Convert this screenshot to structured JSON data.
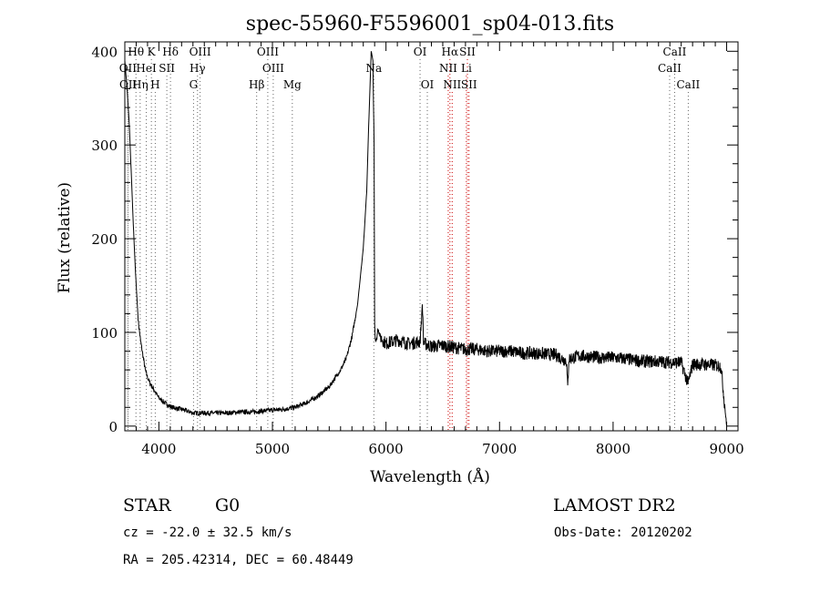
{
  "chart_data": {
    "type": "line",
    "title": "spec-55960-F5596001_sp04-013.fits",
    "xlabel": "Wavelength (Å)",
    "ylabel": "Flux (relative)",
    "xlim": [
      3700,
      9100
    ],
    "ylim": [
      -5,
      410
    ],
    "x_ticks": [
      4000,
      5000,
      6000,
      7000,
      8000,
      9000
    ],
    "y_ticks": [
      0,
      100,
      200,
      300,
      400
    ],
    "grid": false,
    "series": [
      {
        "x": [
          3700,
          3720,
          3740,
          3760,
          3780,
          3800,
          3820,
          3840,
          3860,
          3880,
          3900,
          3925,
          3950,
          3975,
          4000,
          4050,
          4100,
          4150,
          4200,
          4250,
          4300,
          4350,
          4400,
          4500,
          4600,
          4700,
          4800,
          4900,
          5000,
          5100,
          5200,
          5300,
          5400,
          5500,
          5600,
          5650,
          5700,
          5750,
          5800,
          5830,
          5850,
          5870,
          5885,
          5895,
          5900,
          5905,
          5915,
          5930,
          5950,
          6000,
          6050,
          6100,
          6200,
          6300,
          6320,
          6330,
          6340,
          6400,
          6500,
          6600,
          6700,
          6800,
          6900,
          7000,
          7100,
          7200,
          7300,
          7400,
          7500,
          7550,
          7590,
          7600,
          7610,
          7650,
          7700,
          7800,
          7900,
          8000,
          8100,
          8200,
          8300,
          8400,
          8500,
          8600,
          8660,
          8700,
          8800,
          8900,
          8950,
          9000
        ],
        "y": [
          390,
          360,
          320,
          260,
          200,
          150,
          110,
          90,
          75,
          60,
          52,
          45,
          40,
          35,
          30,
          25,
          21,
          19,
          18,
          16,
          14,
          14,
          14,
          14,
          14,
          15,
          15,
          16,
          17,
          18,
          20,
          25,
          32,
          42,
          60,
          72,
          95,
          130,
          190,
          250,
          330,
          400,
          390,
          300,
          110,
          95,
          90,
          105,
          95,
          88,
          90,
          92,
          88,
          90,
          130,
          90,
          88,
          85,
          86,
          84,
          82,
          82,
          80,
          80,
          80,
          78,
          78,
          77,
          76,
          72,
          70,
          40,
          72,
          73,
          75,
          74,
          73,
          73,
          72,
          70,
          69,
          69,
          68,
          68,
          45,
          66,
          66,
          65,
          64,
          0
        ]
      }
    ],
    "line_markers": [
      {
        "label": "Hθ",
        "x": 3798,
        "row": 1
      },
      {
        "label": "K",
        "x": 3934,
        "row": 1
      },
      {
        "label": "Hδ",
        "x": 4102,
        "row": 1
      },
      {
        "label": "OIII",
        "x": 4363,
        "row": 1
      },
      {
        "label": "OIII",
        "x": 4959,
        "row": 1
      },
      {
        "label": "OI",
        "x": 6300,
        "row": 1
      },
      {
        "label": "Hα",
        "x": 6563,
        "row": 1
      },
      {
        "label": "SII",
        "x": 6717,
        "row": 1
      },
      {
        "label": "CaII",
        "x": 8542,
        "row": 1
      },
      {
        "label": "OII",
        "x": 3727,
        "row": 2
      },
      {
        "label": "HeI",
        "x": 3889,
        "row": 2
      },
      {
        "label": "SII",
        "x": 4070,
        "row": 2
      },
      {
        "label": "Hγ",
        "x": 4340,
        "row": 2
      },
      {
        "label": "OIII",
        "x": 5007,
        "row": 2
      },
      {
        "label": "Na",
        "x": 5893,
        "row": 2
      },
      {
        "label": "NII",
        "x": 6548,
        "row": 2
      },
      {
        "label": "Li",
        "x": 6708,
        "row": 2
      },
      {
        "label": "CaII",
        "x": 8498,
        "row": 2
      },
      {
        "label": "OII",
        "x": 3729,
        "row": 3
      },
      {
        "label": "Hη",
        "x": 3835,
        "row": 3
      },
      {
        "label": "H",
        "x": 3968,
        "row": 3
      },
      {
        "label": "G",
        "x": 4305,
        "row": 3
      },
      {
        "label": "Hβ",
        "x": 4861,
        "row": 3
      },
      {
        "label": "Mg",
        "x": 5175,
        "row": 3
      },
      {
        "label": "OI",
        "x": 6364,
        "row": 3
      },
      {
        "label": "NII",
        "x": 6583,
        "row": 3
      },
      {
        "label": "SII",
        "x": 6731,
        "row": 3
      },
      {
        "label": "CaII",
        "x": 8662,
        "row": 3
      }
    ]
  },
  "info": {
    "class": "STAR",
    "subclass": "G0",
    "survey": "LAMOST DR2",
    "cz": "cz = -22.0 ± 32.5 km/s",
    "obs_date": "Obs-Date: 20120202",
    "coords": "RA = 205.42314, DEC =  60.48449"
  }
}
